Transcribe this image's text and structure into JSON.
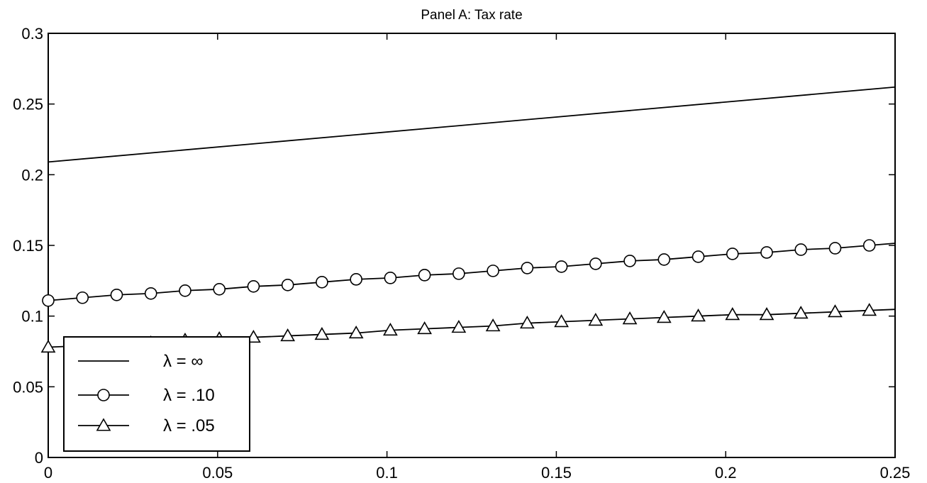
{
  "chart_data": {
    "type": "line",
    "title": "Panel A: Tax rate",
    "xlabel": "",
    "ylabel": "",
    "xlim": [
      0,
      0.25
    ],
    "ylim": [
      0,
      0.3
    ],
    "grid": false,
    "legend_position": "bottom-left",
    "x_ticks": [
      0,
      0.05,
      0.1,
      0.15,
      0.2,
      0.25
    ],
    "x_tick_labels": [
      "0",
      "0.05",
      "0.1",
      "0.15",
      "0.2",
      "0.25"
    ],
    "y_ticks": [
      0,
      0.05,
      0.1,
      0.15,
      0.2,
      0.25,
      0.3
    ],
    "y_tick_labels": [
      "0",
      "0.05",
      "0.1",
      "0.15",
      "0.2",
      "0.25",
      "0.3"
    ],
    "x": [
      0,
      0.0101,
      0.0202,
      0.0303,
      0.0404,
      0.0505,
      0.0606,
      0.0707,
      0.0808,
      0.0909,
      0.101,
      0.1111,
      0.1212,
      0.1313,
      0.1414,
      0.1515,
      0.1616,
      0.1717,
      0.1818,
      0.1919,
      0.202,
      0.2121,
      0.2222,
      0.2323,
      0.2424
    ],
    "series": [
      {
        "name": "λ = ∞",
        "marker": "none",
        "x": [
          0,
          0.25
        ],
        "values": [
          0.209,
          0.262
        ]
      },
      {
        "name": "λ = .10",
        "marker": "circle",
        "values": [
          0.111,
          0.113,
          0.115,
          0.116,
          0.118,
          0.119,
          0.121,
          0.122,
          0.124,
          0.126,
          0.127,
          0.129,
          0.13,
          0.132,
          0.134,
          0.135,
          0.137,
          0.139,
          0.14,
          0.142,
          0.144,
          0.145,
          0.147,
          0.148,
          0.15
        ]
      },
      {
        "name": "λ = .05",
        "marker": "triangle",
        "values": [
          0.078,
          0.079,
          0.08,
          0.081,
          0.083,
          0.084,
          0.085,
          0.086,
          0.087,
          0.088,
          0.09,
          0.091,
          0.092,
          0.093,
          0.095,
          0.096,
          0.097,
          0.098,
          0.099,
          0.1,
          0.101,
          0.101,
          0.102,
          0.103,
          0.104
        ]
      }
    ]
  }
}
